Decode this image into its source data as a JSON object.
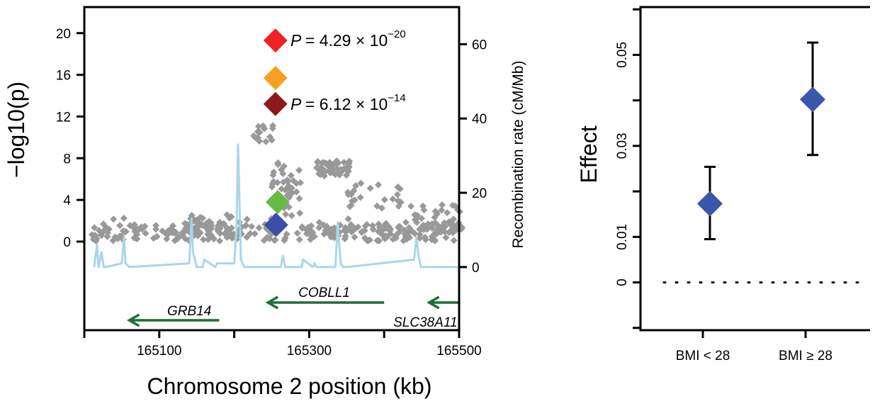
{
  "chart_data": [
    {
      "type": "scatter",
      "xlabel": "Chromosome 2 position (kb)",
      "ylabel_left": "−log10(p)",
      "ylabel_right": "Recombination rate (cM/Mb)",
      "xlim": [
        165000,
        165500
      ],
      "ylim_left": [
        -8.5,
        22.5
      ],
      "ylim_right": [
        -17,
        70
      ],
      "x_ticks": [
        165100,
        165300,
        165500
      ],
      "y_ticks_left": [
        0,
        4,
        8,
        12,
        16,
        20
      ],
      "y_ticks_right": [
        0,
        20,
        40,
        60
      ],
      "grid": false,
      "highlighted_snps": [
        {
          "x": 165255,
          "y": 19.3,
          "color": "#ee2222"
        },
        {
          "x": 165255,
          "y": 15.7,
          "color": "#f5a020"
        },
        {
          "x": 165255,
          "y": 13.2,
          "color": "#8b1a1a"
        },
        {
          "x": 165258,
          "y": 3.8,
          "color": "#66bb44"
        },
        {
          "x": 165256,
          "y": 1.6,
          "color": "#3b4fa8"
        }
      ],
      "annotations": [
        {
          "prefix": "P",
          "mantissa": "= 4.29 × 10",
          "exponent": "−20"
        },
        {
          "prefix": "P",
          "mantissa": "= 6.12 × 10",
          "exponent": "−14"
        }
      ],
      "genes": [
        {
          "name": "GRB14",
          "start": 165180,
          "end": 165060
        },
        {
          "name": "COBLL1",
          "start": 165400,
          "end": 165245
        },
        {
          "name": "SLC38A11",
          "start": 165500,
          "end": 165460
        }
      ],
      "background_color": "#999999",
      "recombination_color": "#a9d6ea",
      "gene_color": "#1f6e35",
      "recombination_rate": {
        "x": [
          165013,
          165017,
          165019,
          165023,
          165026,
          165028,
          165050,
          165053,
          165055,
          165060,
          165140,
          165143,
          165145,
          165150,
          165158,
          165160,
          165175,
          165177,
          165200,
          165203,
          165205,
          165209,
          165213,
          165262,
          165265,
          165268,
          165290,
          165292,
          165305,
          165307,
          165310,
          165335,
          165338,
          165342,
          165345,
          165350,
          165440,
          165443,
          165446,
          165449,
          165505
        ],
        "y": [
          0,
          6,
          0,
          4,
          0,
          0,
          1,
          8,
          1,
          0,
          1,
          13,
          4,
          0,
          0,
          2,
          0,
          1,
          1,
          10,
          33,
          2,
          0,
          0,
          3,
          0,
          0,
          2,
          0,
          1,
          0,
          0,
          12,
          1,
          0,
          0,
          2,
          8,
          3,
          0,
          0
        ]
      }
    },
    {
      "type": "scatter",
      "ylabel": "Effect",
      "categories": [
        "BMI < 28",
        "BMI ≥ 28"
      ],
      "values": [
        0.0173,
        0.0402
      ],
      "ci_low": [
        0.0095,
        0.028
      ],
      "ci_high": [
        0.0254,
        0.0527
      ],
      "ylim": [
        -0.0105,
        0.0605
      ],
      "y_ticks": [
        0,
        0.01,
        0.03,
        0.05
      ],
      "y_tick_labels": [
        "0",
        "0.01",
        "0.03",
        "0.05"
      ],
      "reference_line": 0,
      "point_color": "#3b57ab",
      "grid": false
    }
  ]
}
